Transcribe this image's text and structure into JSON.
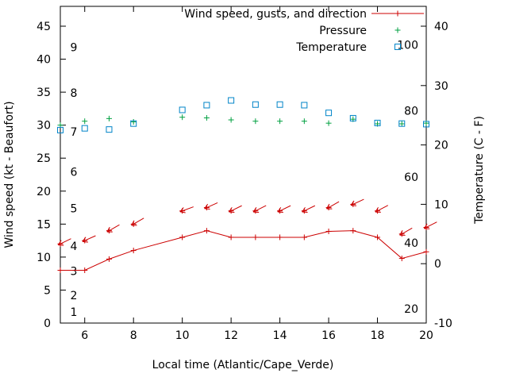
{
  "chart_data": {
    "type": "line",
    "title": "",
    "xlabel": "Local time (Atlantic/Cape_Verde)",
    "ylabel_left": "Wind speed (kt - Beaufort)",
    "ylabel_right": "Temperature (C - F)",
    "grid": false,
    "x_range": [
      5,
      20
    ],
    "x_ticks": [
      "6",
      "8",
      "10",
      "12",
      "14",
      "16",
      "18",
      "20"
    ],
    "x_tick_values": [
      6,
      8,
      10,
      12,
      14,
      16,
      18,
      20
    ],
    "y_left": {
      "unit": "kt",
      "range": [
        0,
        48
      ],
      "tick_labels": [
        "0",
        "5",
        "10",
        "15",
        "20",
        "25",
        "30",
        "35",
        "40",
        "45"
      ],
      "tick_values": [
        0,
        5,
        10,
        15,
        20,
        25,
        30,
        35,
        40,
        45
      ]
    },
    "y_right": {
      "unit": "C",
      "range": [
        -10,
        43.3
      ],
      "tick_labels": [
        "-10",
        "0",
        "10",
        "20",
        "30",
        "40"
      ],
      "tick_values": [
        -10,
        0,
        10,
        20,
        30,
        40
      ]
    },
    "beaufort_inner_scale": {
      "labels": [
        "1",
        "2",
        "3",
        "4",
        "5",
        "6",
        "7",
        "8",
        "9"
      ],
      "kt_positions": [
        1.7,
        4.2,
        7.9,
        11.7,
        17.4,
        22.9,
        29.0,
        34.9,
        41.8
      ]
    },
    "fahrenheit_inner_scale": {
      "labels": [
        "20",
        "40",
        "60",
        "80",
        "100"
      ],
      "f_values": [
        20,
        40,
        60,
        80,
        100
      ]
    },
    "legend": {
      "position": "top-right-inside",
      "entries": [
        {
          "label": "Wind speed, gusts, and direction",
          "color": "#cc0000",
          "marker": "line-plus"
        },
        {
          "label": "Pressure",
          "color": "#00a040",
          "marker": "plus"
        },
        {
          "label": "Temperature",
          "color": "#0084c8",
          "marker": "open-square"
        }
      ]
    },
    "x_hours": [
      5,
      6,
      7,
      8,
      10,
      11,
      12,
      13,
      14,
      15,
      16,
      17,
      18,
      19,
      20
    ],
    "series": [
      {
        "name": "wind_speed",
        "axis": "left",
        "unit": "kt",
        "color": "#cc0000",
        "values": [
          8,
          8,
          9.7,
          11,
          13,
          14,
          13,
          13,
          13,
          13,
          13.9,
          14,
          13,
          9.8,
          10.8
        ]
      },
      {
        "name": "wind_gusts",
        "axis": "left",
        "unit": "kt",
        "color": "#cc0000",
        "values": [
          12,
          12.5,
          14,
          15,
          17,
          17.5,
          17,
          17,
          17,
          17,
          17.5,
          18,
          17,
          13.5,
          14.5
        ],
        "arrow_angles_deg": [
          244,
          246,
          240,
          240,
          250,
          246,
          244,
          243,
          244,
          244,
          240,
          245,
          242,
          240,
          243
        ]
      },
      {
        "name": "pressure",
        "axis": "left-plot-units",
        "color": "#00a040",
        "values_plot_units": [
          30,
          30.6,
          31,
          30.5,
          31.2,
          31.1,
          30.8,
          30.6,
          30.6,
          30.6,
          30.3,
          30.9,
          30.2,
          30.2,
          30.3
        ]
      },
      {
        "name": "temperature",
        "axis": "right",
        "unit": "C",
        "color": "#0084c8",
        "values": [
          22.5,
          22.8,
          22.6,
          23.6,
          25.9,
          26.7,
          27.5,
          26.8,
          26.8,
          26.7,
          25.4,
          24.5,
          23.7,
          23.6,
          23.5
        ]
      }
    ]
  }
}
